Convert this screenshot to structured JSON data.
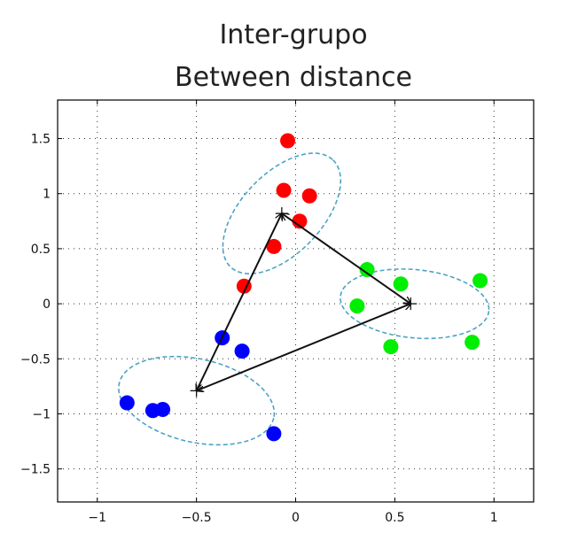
{
  "chart_data": {
    "type": "scatter",
    "title": [
      "Inter-grupo",
      "Between distance"
    ],
    "xlabel": "",
    "ylabel": "",
    "xlim": [
      -1.2,
      1.2
    ],
    "ylim": [
      -1.8,
      1.85
    ],
    "xticks": [
      -1,
      -0.5,
      0,
      0.5,
      1
    ],
    "xtick_labels": [
      "−1",
      "−0.5",
      "0",
      "0.5",
      "1"
    ],
    "yticks": [
      -1.5,
      -1,
      -0.5,
      0,
      0.5,
      1,
      1.5
    ],
    "ytick_labels": [
      "−1.5",
      "−1",
      "−0.5",
      "0",
      "0.5",
      "1",
      "1.5"
    ],
    "grid": true,
    "series": [
      {
        "color": "#ff0000",
        "points": [
          [
            -0.04,
            1.48
          ],
          [
            -0.06,
            1.03
          ],
          [
            0.07,
            0.98
          ],
          [
            0.02,
            0.75
          ],
          [
            -0.11,
            0.52
          ],
          [
            -0.26,
            0.16
          ]
        ],
        "centroid": [
          -0.07,
          0.82
        ],
        "ellipse": {
          "center": [
            -0.07,
            0.82
          ],
          "rx": 0.55,
          "ry": 0.22,
          "angle_deg": 62
        }
      },
      {
        "color": "#00ee00",
        "points": [
          [
            0.36,
            0.31
          ],
          [
            0.53,
            0.18
          ],
          [
            0.31,
            -0.02
          ],
          [
            0.48,
            -0.39
          ],
          [
            0.89,
            -0.35
          ],
          [
            0.93,
            0.21
          ]
        ],
        "centroid": [
          0.58,
          0.0
        ],
        "ellipse": {
          "center": [
            0.6,
            0.0
          ],
          "rx": 0.38,
          "ry": 0.3,
          "angle_deg": -10
        }
      },
      {
        "color": "#0000ff",
        "points": [
          [
            -0.37,
            -0.31
          ],
          [
            -0.27,
            -0.43
          ],
          [
            -0.85,
            -0.9
          ],
          [
            -0.72,
            -0.97
          ],
          [
            -0.67,
            -0.96
          ],
          [
            -0.11,
            -1.18
          ]
        ],
        "centroid": [
          -0.5,
          -0.79
        ],
        "ellipse": {
          "center": [
            -0.5,
            -0.88
          ],
          "rx": 0.42,
          "ry": 0.33,
          "angle_deg": -22
        }
      }
    ],
    "arrows": [
      {
        "from": [
          -0.07,
          0.82
        ],
        "to": [
          0.58,
          0.0
        ],
        "double_headed": true
      },
      {
        "from": [
          0.58,
          0.0
        ],
        "to": [
          -0.5,
          -0.79
        ],
        "double_headed": true
      },
      {
        "from": [
          -0.5,
          -0.79
        ],
        "to": [
          -0.07,
          0.82
        ],
        "double_headed": true
      }
    ]
  }
}
